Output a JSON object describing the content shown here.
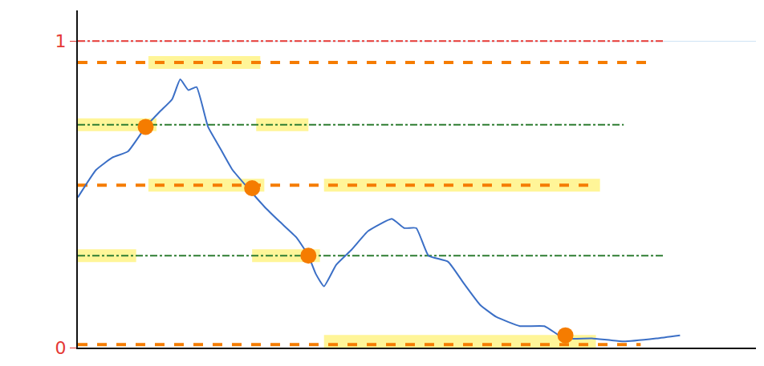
{
  "chart_data": {
    "type": "line",
    "xlim": [
      0,
      100
    ],
    "xticks": [],
    "ylim": [
      0,
      1.1
    ],
    "yticks": [
      0,
      1
    ],
    "tick_labels": "y",
    "grid": true,
    "series": [
      {
        "type": "line",
        "line_style": "highlight",
        "color": "#fff176",
        "x": [
          10.4,
          26.9
        ],
        "values": [
          0.93,
          0.93
        ]
      },
      {
        "type": "line",
        "line_style": "highlight",
        "color": "#fff176",
        "x": [
          0,
          11.6
        ],
        "values": [
          0.727,
          0.727
        ]
      },
      {
        "type": "line",
        "line_style": "highlight",
        "color": "#fff176",
        "x": [
          26.3,
          34
        ],
        "values": [
          0.727,
          0.727
        ]
      },
      {
        "type": "line",
        "line_style": "highlight",
        "color": "#fff176",
        "x": [
          10.4,
          27.5
        ],
        "values": [
          0.53,
          0.53
        ]
      },
      {
        "type": "line",
        "line_style": "highlight",
        "color": "#fff176",
        "x": [
          36.3,
          77
        ],
        "values": [
          0.53,
          0.53
        ]
      },
      {
        "type": "line",
        "line_style": "highlight",
        "color": "#fff176",
        "x": [
          0,
          8.6
        ],
        "values": [
          0.3,
          0.3
        ]
      },
      {
        "type": "line",
        "line_style": "highlight",
        "color": "#fff176",
        "x": [
          25.7,
          35.7
        ],
        "values": [
          0.3,
          0.3
        ]
      },
      {
        "type": "line",
        "line_style": "highlight",
        "color": "#fff176",
        "x": [
          36.3,
          76.4
        ],
        "values": [
          0.02,
          0.02
        ]
      },
      {
        "type": "line",
        "line_style": "dashdot",
        "color": "#e53935",
        "x": [
          0,
          86.4
        ],
        "values": [
          1,
          1
        ]
      },
      {
        "type": "line",
        "line_style": "dash",
        "color": "#f57c00",
        "x": [
          0,
          84
        ],
        "values": [
          0.93,
          0.93
        ]
      },
      {
        "type": "line",
        "line_style": "dashdot",
        "color": "#2e7d32",
        "x": [
          0,
          80.5
        ],
        "values": [
          0.727,
          0.727
        ]
      },
      {
        "type": "line",
        "line_style": "dash",
        "color": "#f57c00",
        "x": [
          0,
          76.4
        ],
        "values": [
          0.53,
          0.53
        ]
      },
      {
        "type": "line",
        "line_style": "dashdot",
        "color": "#2e7d32",
        "x": [
          0,
          86.4
        ],
        "values": [
          0.3,
          0.3
        ]
      },
      {
        "type": "line",
        "line_style": "dash",
        "color": "#f57c00",
        "x": [
          0,
          83
        ],
        "values": [
          0.01,
          0.01
        ]
      },
      {
        "type": "line",
        "line_style": "solid",
        "color": "#3b6fc6",
        "x": [
          0,
          2.7,
          5.1,
          7.4,
          10,
          12.1,
          13.9,
          15.1,
          16.3,
          17.5,
          19.2,
          21,
          22.8,
          25.1,
          27.5,
          29.8,
          32.2,
          34,
          35.1,
          36.3,
          38.1,
          40.4,
          42.8,
          46.3,
          48.1,
          49.9,
          51.7,
          54.6,
          56.9,
          59.3,
          61.7,
          65.2,
          68.8,
          71.7,
          75.8,
          80.5,
          85.3,
          88.8
        ],
        "values": [
          0.49,
          0.58,
          0.62,
          0.64,
          0.72,
          0.77,
          0.81,
          0.875,
          0.84,
          0.85,
          0.72,
          0.65,
          0.58,
          0.52,
          0.46,
          0.41,
          0.36,
          0.3,
          0.24,
          0.2,
          0.27,
          0.32,
          0.38,
          0.42,
          0.39,
          0.39,
          0.3,
          0.28,
          0.21,
          0.14,
          0.1,
          0.07,
          0.07,
          0.03,
          0.03,
          0.02,
          0.03,
          0.04
        ]
      },
      {
        "type": "scatter",
        "marker": "circle",
        "color": "#f57c00",
        "x": [
          10,
          25.7,
          34,
          71.9
        ],
        "values": [
          0.72,
          0.52,
          0.3,
          0.04
        ]
      }
    ]
  }
}
